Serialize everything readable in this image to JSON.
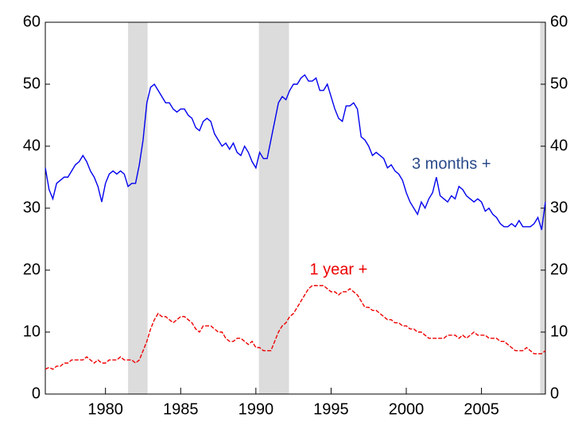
{
  "chart_data": {
    "type": "line",
    "x": [
      1976,
      1976.25,
      1976.5,
      1976.75,
      1977,
      1977.25,
      1977.5,
      1977.75,
      1978,
      1978.25,
      1978.5,
      1978.75,
      1979,
      1979.25,
      1979.5,
      1979.75,
      1980,
      1980.25,
      1980.5,
      1980.75,
      1981,
      1981.25,
      1981.5,
      1981.75,
      1982,
      1982.25,
      1982.5,
      1982.75,
      1983,
      1983.25,
      1983.5,
      1983.75,
      1984,
      1984.25,
      1984.5,
      1984.75,
      1985,
      1985.25,
      1985.5,
      1985.75,
      1986,
      1986.25,
      1986.5,
      1986.75,
      1987,
      1987.25,
      1987.5,
      1987.75,
      1988,
      1988.25,
      1988.5,
      1988.75,
      1989,
      1989.25,
      1989.5,
      1989.75,
      1990,
      1990.25,
      1990.5,
      1990.75,
      1991,
      1991.25,
      1991.5,
      1991.75,
      1992,
      1992.25,
      1992.5,
      1992.75,
      1993,
      1993.25,
      1993.5,
      1993.75,
      1994,
      1994.25,
      1994.5,
      1994.75,
      1995,
      1995.25,
      1995.5,
      1995.75,
      1996,
      1996.25,
      1996.5,
      1996.75,
      1997,
      1997.25,
      1997.5,
      1997.75,
      1998,
      1998.25,
      1998.5,
      1998.75,
      1999,
      1999.25,
      1999.5,
      1999.75,
      2000,
      2000.25,
      2000.5,
      2000.75,
      2001,
      2001.25,
      2001.5,
      2001.75,
      2002,
      2002.25,
      2002.5,
      2002.75,
      2003,
      2003.25,
      2003.5,
      2003.75,
      2004,
      2004.25,
      2004.5,
      2004.75,
      2005,
      2005.25,
      2005.5,
      2005.75,
      2006,
      2006.25,
      2006.5,
      2006.75,
      2007,
      2007.25,
      2007.5,
      2007.75,
      2008,
      2008.25,
      2008.5,
      2008.75,
      2009,
      2009.25
    ],
    "series": [
      {
        "color": "#0000ee",
        "dash": false,
        "values": [
          36.5,
          33,
          31.5,
          34,
          34.5,
          35,
          35,
          36,
          37,
          37.5,
          38.5,
          37.5,
          36,
          35,
          33.5,
          31,
          34,
          35.5,
          36,
          35.5,
          36,
          35.5,
          33.5,
          34,
          34,
          37,
          41,
          47,
          49.5,
          50,
          49,
          48,
          47,
          47,
          46,
          45.5,
          46,
          46,
          45,
          44.5,
          43,
          42.5,
          44,
          44.5,
          44,
          42,
          41,
          40,
          40.5,
          39.5,
          40.5,
          39,
          38.5,
          40,
          39,
          37.5,
          36.5,
          39,
          38,
          38,
          41,
          44,
          47,
          48,
          47.5,
          49,
          50,
          50,
          51,
          51.5,
          50.5,
          50.5,
          51,
          49,
          49,
          50,
          48,
          46,
          44.5,
          44,
          46.5,
          46.5,
          47,
          46,
          41.5,
          41,
          40,
          38.5,
          39,
          38.5,
          38,
          36.5,
          37,
          36,
          35.5,
          34.5,
          32.5,
          31,
          30,
          29,
          31,
          30,
          31.5,
          32.5,
          35,
          32,
          31.5,
          31,
          32,
          31.5,
          33.5,
          33,
          32,
          31.5,
          31,
          31.5,
          31,
          29.5,
          30,
          29,
          28.5,
          27.5,
          27,
          27,
          27.5,
          27,
          28,
          27,
          27,
          27,
          27.5,
          28.5,
          26.5,
          31
        ]
      },
      {
        "color": "#ee0000",
        "dash": true,
        "values": [
          4,
          4.3,
          4,
          4.5,
          4.5,
          5,
          5,
          5.5,
          5.5,
          5.5,
          5.5,
          6,
          5.5,
          5,
          5.5,
          5,
          5,
          5.5,
          5.5,
          5.5,
          6,
          5.5,
          5.5,
          5.5,
          5,
          5.5,
          7,
          8.5,
          10.5,
          12,
          13,
          12.5,
          12.5,
          12,
          11.5,
          12,
          12.5,
          12.5,
          12,
          11.5,
          10.5,
          10,
          11,
          11,
          11,
          10.5,
          10,
          10,
          9,
          8.5,
          8.5,
          9,
          9,
          8.5,
          8,
          8.5,
          7.5,
          7.5,
          7,
          7,
          7,
          8.5,
          10,
          11,
          11.5,
          12.5,
          13,
          14,
          15,
          16,
          17,
          17.5,
          17.5,
          17.5,
          17.5,
          17,
          16.5,
          16.5,
          16,
          16.5,
          16.5,
          17,
          16.5,
          16,
          15,
          14,
          14,
          13.5,
          13.5,
          13,
          12.5,
          12,
          12,
          11.5,
          11.5,
          11,
          11,
          10.5,
          10.5,
          10,
          10,
          9.5,
          9,
          9,
          9,
          9,
          9,
          9.5,
          9.5,
          9.5,
          9,
          9.5,
          9,
          9.5,
          10,
          9.5,
          9.5,
          9.5,
          9,
          9,
          9,
          8.5,
          8.5,
          8,
          7.5,
          7,
          7,
          7,
          7.5,
          7,
          6.5,
          6.5,
          6.5,
          7
        ]
      }
    ],
    "annotations": [
      {
        "text": "3 months +",
        "x": 2003,
        "y": 37,
        "color": "#2a4a8a"
      },
      {
        "text": "1 year +",
        "x": 1995.5,
        "y": 20,
        "color": "#ee0000"
      }
    ],
    "shaded": [
      [
        1981.5,
        1982.8
      ],
      [
        1990.2,
        1992.2
      ],
      [
        2008.9,
        2009.25
      ]
    ],
    "xlim": [
      1976,
      2009.25
    ],
    "xticks": [
      1980,
      1985,
      1990,
      1995,
      2000,
      2005
    ],
    "ylim": [
      0,
      60
    ],
    "yticks": [
      0,
      10,
      20,
      30,
      40,
      50,
      60
    ],
    "y2lim": [
      0,
      60
    ],
    "y2ticks": [
      0,
      10,
      20,
      30,
      40,
      50,
      60
    ]
  }
}
